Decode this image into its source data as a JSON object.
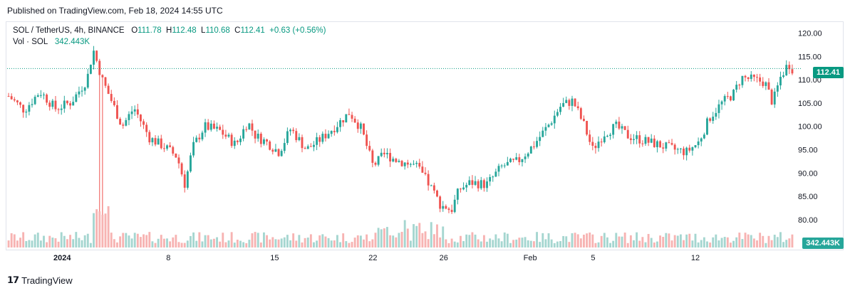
{
  "header": {
    "published": "Published on TradingView.com, Feb 18, 2024 14:55 UTC"
  },
  "legend": {
    "symbol": "SOL / TetherUS, 4h, BINANCE",
    "o_label": "O",
    "o": "111.78",
    "h_label": "H",
    "h": "112.48",
    "l_label": "L",
    "l": "110.68",
    "c_label": "C",
    "c": "112.41",
    "change": "+0.63 (+0.56%)",
    "vol_label": "Vol · SOL",
    "vol": "342.443K"
  },
  "price_tag": "112.41",
  "volume_tag": "342.443K",
  "footer": {
    "brand": "TradingView"
  },
  "colors": {
    "up": "#26a69a",
    "down": "#ef5350",
    "up_vol": "#a5d6d0",
    "down_vol": "#f7b3b2",
    "accent": "#089981"
  },
  "chart_data": {
    "type": "candlestick",
    "y_ticks": [
      "120.00",
      "115.00",
      "110.00",
      "105.00",
      "100.00",
      "95.00",
      "90.00",
      "85.00",
      "80.00"
    ],
    "ylim": [
      78,
      121
    ],
    "x_ticks": [
      "2024",
      "8",
      "15",
      "22",
      "26",
      "Feb",
      "5",
      "12"
    ],
    "last_price": 112.41,
    "last_volume": "342.443K",
    "close_path": [
      {
        "t": 0,
        "p": 106.5
      },
      {
        "t": 0.02,
        "p": 103.5
      },
      {
        "t": 0.04,
        "p": 107.5
      },
      {
        "t": 0.06,
        "p": 103.8
      },
      {
        "t": 0.08,
        "p": 105.2
      },
      {
        "t": 0.1,
        "p": 110.0
      },
      {
        "t": 0.108,
        "p": 116.5
      },
      {
        "t": 0.12,
        "p": 109.8
      },
      {
        "t": 0.13,
        "p": 106.0
      },
      {
        "t": 0.145,
        "p": 100.0
      },
      {
        "t": 0.16,
        "p": 104.0
      },
      {
        "t": 0.18,
        "p": 97.5
      },
      {
        "t": 0.2,
        "p": 95.5
      },
      {
        "t": 0.215,
        "p": 93.5
      },
      {
        "t": 0.225,
        "p": 87.5
      },
      {
        "t": 0.235,
        "p": 95.5
      },
      {
        "t": 0.25,
        "p": 100.0
      },
      {
        "t": 0.27,
        "p": 99.0
      },
      {
        "t": 0.29,
        "p": 96.0
      },
      {
        "t": 0.305,
        "p": 101.0
      },
      {
        "t": 0.315,
        "p": 98.0
      },
      {
        "t": 0.33,
        "p": 96.5
      },
      {
        "t": 0.345,
        "p": 94.5
      },
      {
        "t": 0.36,
        "p": 99.5
      },
      {
        "t": 0.38,
        "p": 95.0
      },
      {
        "t": 0.4,
        "p": 97.5
      },
      {
        "t": 0.42,
        "p": 100.5
      },
      {
        "t": 0.435,
        "p": 103.0
      },
      {
        "t": 0.45,
        "p": 99.5
      },
      {
        "t": 0.465,
        "p": 91.5
      },
      {
        "t": 0.48,
        "p": 94.0
      },
      {
        "t": 0.5,
        "p": 92.5
      },
      {
        "t": 0.52,
        "p": 91.5
      },
      {
        "t": 0.535,
        "p": 88.0
      },
      {
        "t": 0.55,
        "p": 83.5
      },
      {
        "t": 0.565,
        "p": 82.0
      },
      {
        "t": 0.575,
        "p": 86.5
      },
      {
        "t": 0.59,
        "p": 88.0
      },
      {
        "t": 0.61,
        "p": 87.5
      },
      {
        "t": 0.63,
        "p": 91.5
      },
      {
        "t": 0.65,
        "p": 92.5
      },
      {
        "t": 0.67,
        "p": 96.0
      },
      {
        "t": 0.69,
        "p": 100.5
      },
      {
        "t": 0.705,
        "p": 104.5
      },
      {
        "t": 0.72,
        "p": 105.5
      },
      {
        "t": 0.735,
        "p": 100.0
      },
      {
        "t": 0.745,
        "p": 95.0
      },
      {
        "t": 0.76,
        "p": 98.5
      },
      {
        "t": 0.775,
        "p": 100.0
      },
      {
        "t": 0.79,
        "p": 98.0
      },
      {
        "t": 0.81,
        "p": 97.0
      },
      {
        "t": 0.83,
        "p": 96.0
      },
      {
        "t": 0.85,
        "p": 95.0
      },
      {
        "t": 0.865,
        "p": 94.5
      },
      {
        "t": 0.88,
        "p": 96.5
      },
      {
        "t": 0.895,
        "p": 102.0
      },
      {
        "t": 0.91,
        "p": 105.0
      },
      {
        "t": 0.925,
        "p": 107.0
      },
      {
        "t": 0.935,
        "p": 110.5
      },
      {
        "t": 0.95,
        "p": 110.0
      },
      {
        "t": 0.965,
        "p": 109.5
      },
      {
        "t": 0.975,
        "p": 105.0
      },
      {
        "t": 0.985,
        "p": 110.5
      },
      {
        "t": 0.995,
        "p": 113.5
      },
      {
        "t": 1.0,
        "p": 112.41
      }
    ]
  }
}
